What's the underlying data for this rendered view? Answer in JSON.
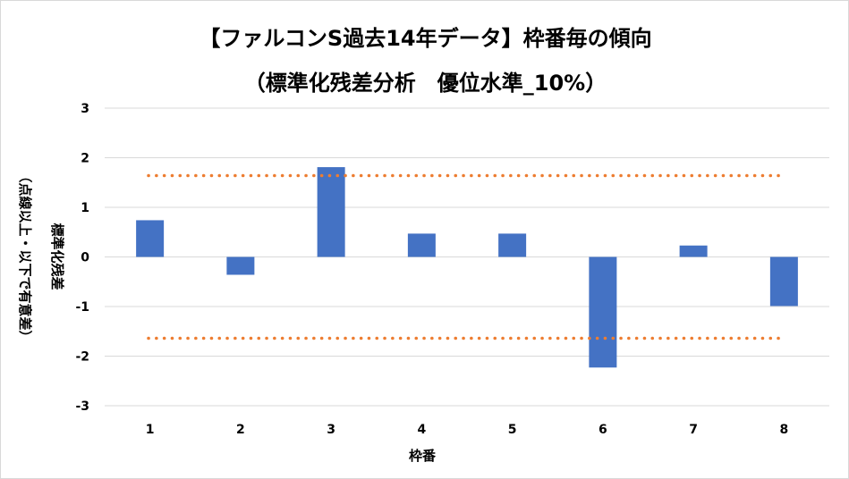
{
  "chart_data": {
    "type": "bar",
    "title": "【ファルコンS過去14年データ】枠番毎の傾向",
    "subtitle": "（標準化残差分析　優位水準_10%）",
    "xlabel": "枠番",
    "ylabel": "標準化残差",
    "ylabel_sub": "（点線以上・以下で有意差）",
    "categories": [
      "1",
      "2",
      "3",
      "4",
      "5",
      "6",
      "7",
      "8"
    ],
    "values": [
      0.74,
      -0.36,
      1.81,
      0.47,
      0.47,
      -2.23,
      0.23,
      -0.99
    ],
    "ylim": [
      -3,
      3
    ],
    "yticks": [
      "3",
      "2",
      "1",
      "0",
      "-1",
      "-2",
      "-3"
    ],
    "threshold_upper": 1.64,
    "threshold_lower": -1.64,
    "grid": true,
    "legend": "none",
    "colors": {
      "bar": "#4472c4",
      "threshold": "#ed7d31",
      "grid": "#d9d9d9"
    }
  }
}
